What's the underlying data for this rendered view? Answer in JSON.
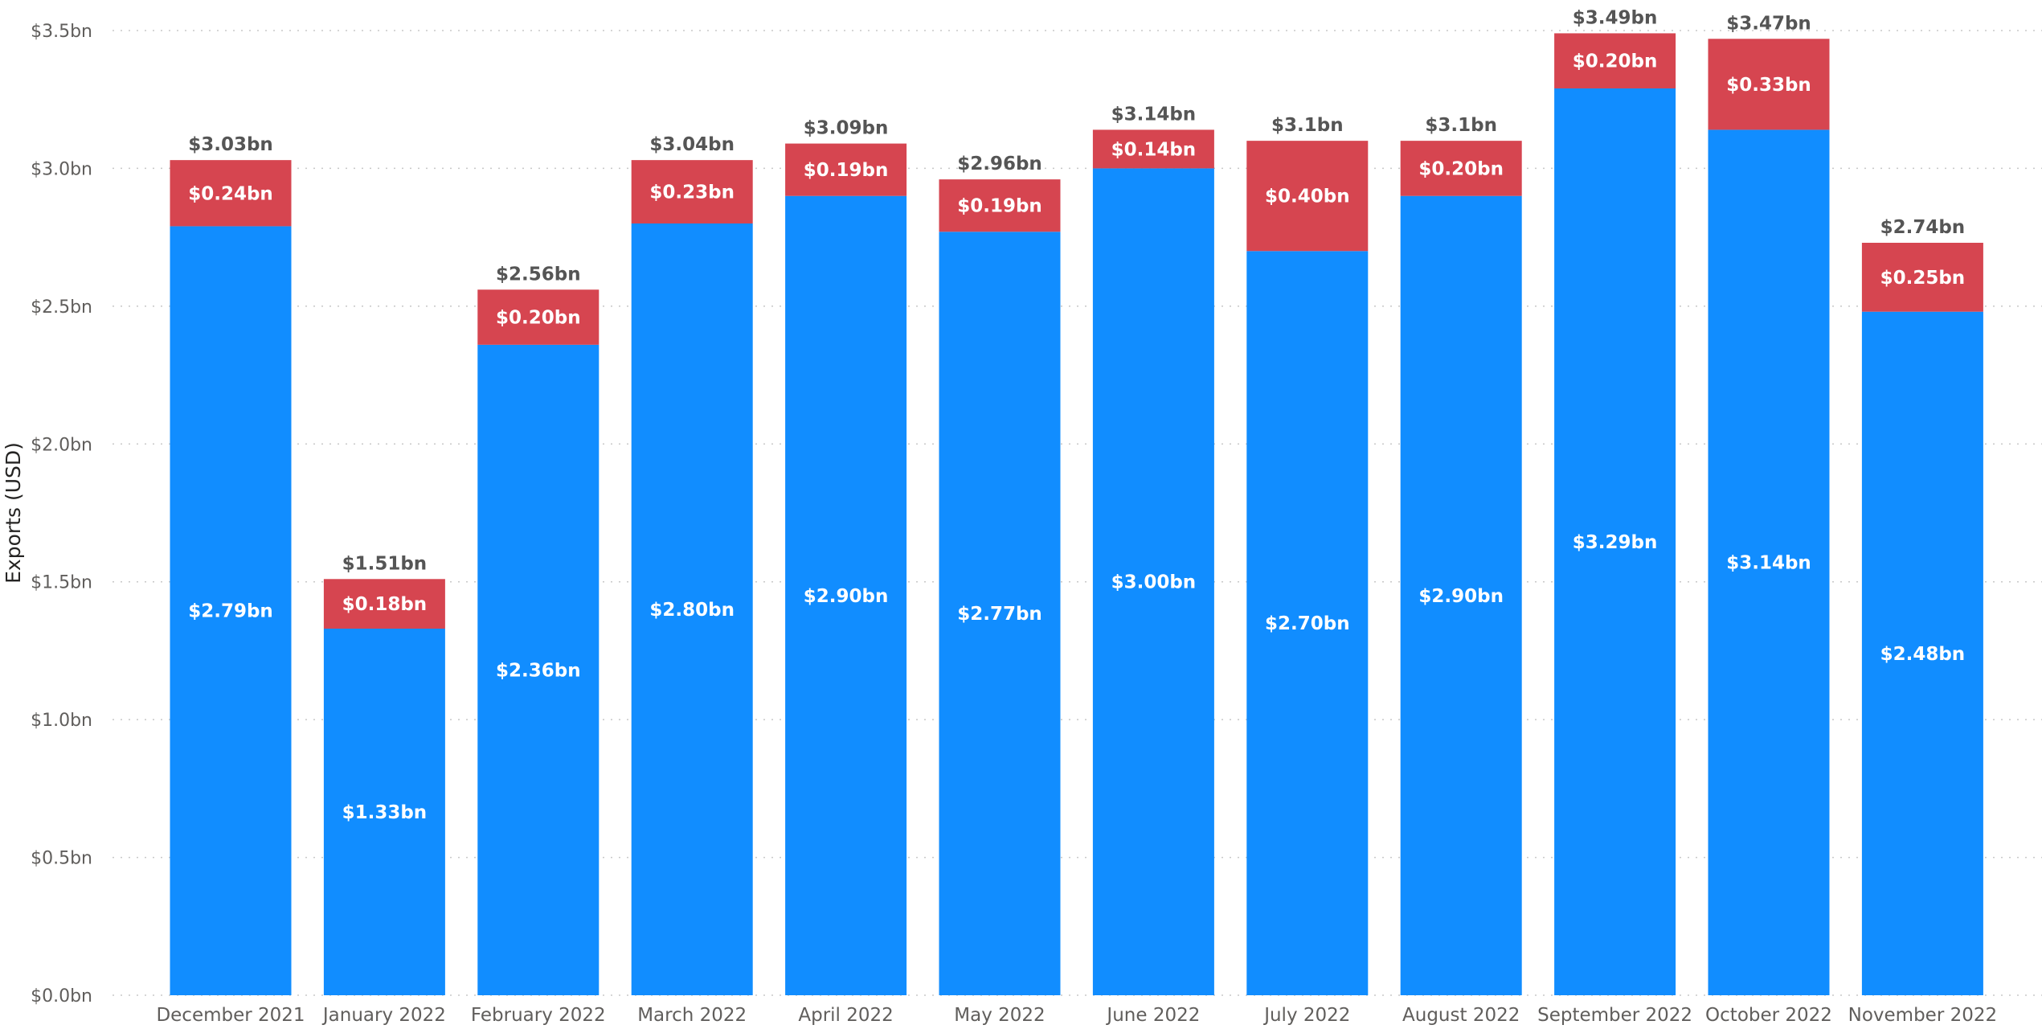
{
  "chart_data": {
    "type": "bar",
    "stacked": true,
    "title": "",
    "xlabel": "",
    "ylabel": "Exports (USD)",
    "ylim": [
      0,
      3.5
    ],
    "y_ticks": [
      {
        "value": 0.0,
        "label": "$0.0bn"
      },
      {
        "value": 0.5,
        "label": "$0.5bn"
      },
      {
        "value": 1.0,
        "label": "$1.0bn"
      },
      {
        "value": 1.5,
        "label": "$1.5bn"
      },
      {
        "value": 2.0,
        "label": "$2.0bn"
      },
      {
        "value": 2.5,
        "label": "$2.5bn"
      },
      {
        "value": 3.0,
        "label": "$3.0bn"
      },
      {
        "value": 3.5,
        "label": "$3.5bn"
      }
    ],
    "grid": true,
    "legend": "none",
    "categories": [
      "December 2021",
      "January 2022",
      "February 2022",
      "March 2022",
      "April 2022",
      "May 2022",
      "June 2022",
      "July 2022",
      "August 2022",
      "September 2022",
      "October 2022",
      "November 2022"
    ],
    "series": [
      {
        "color": "#118dff",
        "values": [
          2.79,
          1.33,
          2.36,
          2.8,
          2.9,
          2.77,
          3.0,
          2.7,
          2.9,
          3.29,
          3.14,
          2.48
        ],
        "labels": [
          "$2.79bn",
          "$1.33bn",
          "$2.36bn",
          "$2.80bn",
          "$2.90bn",
          "$2.77bn",
          "$3.00bn",
          "$2.70bn",
          "$2.90bn",
          "$3.29bn",
          "$3.14bn",
          "$2.48bn"
        ]
      },
      {
        "color": "#d64550",
        "values": [
          0.24,
          0.18,
          0.2,
          0.23,
          0.19,
          0.19,
          0.14,
          0.4,
          0.2,
          0.2,
          0.33,
          0.25
        ],
        "labels": [
          "$0.24bn",
          "$0.18bn",
          "$0.20bn",
          "$0.23bn",
          "$0.19bn",
          "$0.19bn",
          "$0.14bn",
          "$0.40bn",
          "$0.20bn",
          "$0.20bn",
          "$0.33bn",
          "$0.25bn"
        ]
      }
    ],
    "totals": {
      "values": [
        3.03,
        1.51,
        2.56,
        3.04,
        3.09,
        2.96,
        3.14,
        3.1,
        3.1,
        3.49,
        3.47,
        2.74
      ],
      "labels": [
        "$3.03bn",
        "$1.51bn",
        "$2.56bn",
        "$3.04bn",
        "$3.09bn",
        "$2.96bn",
        "$3.14bn",
        "$3.1bn",
        "$3.1bn",
        "$3.49bn",
        "$3.47bn",
        "$2.74bn"
      ]
    }
  }
}
